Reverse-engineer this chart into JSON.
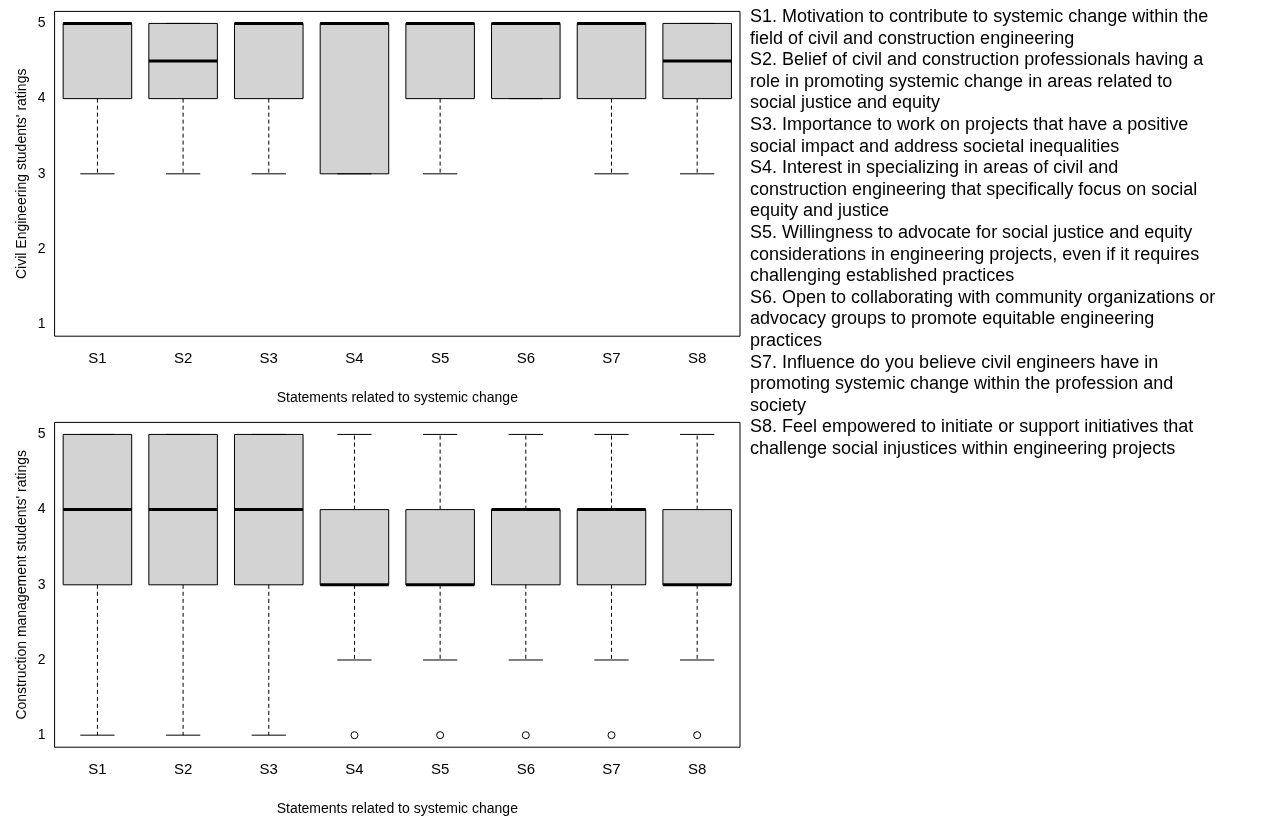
{
  "chart_data": [
    {
      "type": "box",
      "ylabel": "Civil Engineering students' ratings",
      "xlabel": "Statements related to systemic change",
      "categories": [
        "S1",
        "S2",
        "S3",
        "S4",
        "S5",
        "S6",
        "S7",
        "S8"
      ],
      "color": "#d3d3d3",
      "ylim": [
        0.84,
        5.16
      ],
      "yticks": [
        1,
        2,
        3,
        4,
        5
      ],
      "grid": false,
      "legend": false,
      "boxes": [
        {
          "low": 3,
          "q1": 4,
          "median": 5,
          "q3": 5,
          "high": 5
        },
        {
          "low": 3,
          "q1": 4,
          "median": 4.5,
          "q3": 5,
          "high": 5
        },
        {
          "low": 3,
          "q1": 4,
          "median": 5,
          "q3": 5,
          "high": 5
        },
        {
          "low": 3,
          "q1": 3,
          "median": 5,
          "q3": 5,
          "high": 5
        },
        {
          "low": 3,
          "q1": 4,
          "median": 5,
          "q3": 5,
          "high": 5
        },
        {
          "low": 4,
          "q1": 4,
          "median": 5,
          "q3": 5,
          "high": 5
        },
        {
          "low": 3,
          "q1": 4,
          "median": 5,
          "q3": 5,
          "high": 5
        },
        {
          "low": 3,
          "q1": 4,
          "median": 4.5,
          "q3": 5,
          "high": 5
        }
      ]
    },
    {
      "type": "box",
      "ylabel": "Construction management students' ratings",
      "xlabel": "Statements related to systemic change",
      "categories": [
        "S1",
        "S2",
        "S3",
        "S4",
        "S5",
        "S6",
        "S7",
        "S8"
      ],
      "color": "#d3d3d3",
      "ylim": [
        0.84,
        5.16
      ],
      "yticks": [
        1,
        2,
        3,
        4,
        5
      ],
      "grid": false,
      "legend": false,
      "boxes": [
        {
          "low": 1,
          "q1": 3,
          "median": 4,
          "q3": 5,
          "high": 5
        },
        {
          "low": 1,
          "q1": 3,
          "median": 4,
          "q3": 5,
          "high": 5
        },
        {
          "low": 1,
          "q1": 3,
          "median": 4,
          "q3": 5,
          "high": 5
        },
        {
          "low": 2,
          "q1": 3,
          "median": 3,
          "q3": 4,
          "high": 5,
          "outliers": [
            1
          ]
        },
        {
          "low": 2,
          "q1": 3,
          "median": 3,
          "q3": 4,
          "high": 5,
          "outliers": [
            1
          ]
        },
        {
          "low": 2,
          "q1": 3,
          "median": 4,
          "q3": 4,
          "high": 5,
          "outliers": [
            1
          ]
        },
        {
          "low": 2,
          "q1": 3,
          "median": 4,
          "q3": 4,
          "high": 5,
          "outliers": [
            1
          ]
        },
        {
          "low": 2,
          "q1": 3,
          "median": 3,
          "q3": 4,
          "high": 5,
          "outliers": [
            1
          ]
        }
      ]
    },
    {
      "type": "other",
      "annotations": [
        "S1. Motivation to contribute to systemic change within the field of civil and construction engineering",
        "S2. Belief of civil and construction professionals having a role in promoting systemic change in areas related to social justice and equity",
        "S3. Importance to work on projects that have a positive social impact and address societal inequalities",
        "S4. Interest in specializing in areas of civil and construction engineering that specifically focus on social equity and justice",
        "S5. Willingness to advocate for social justice and equity considerations in engineering projects, even if it requires challenging established practices",
        "S6. Open to collaborating with community organizations or advocacy groups to promote equitable engineering practices",
        "S7. Influence do you believe civil engineers have in promoting systemic change within the profession and society",
        "S8. Feel empowered to initiate or support initiatives that challenge social injustices within engineering projects"
      ]
    }
  ]
}
